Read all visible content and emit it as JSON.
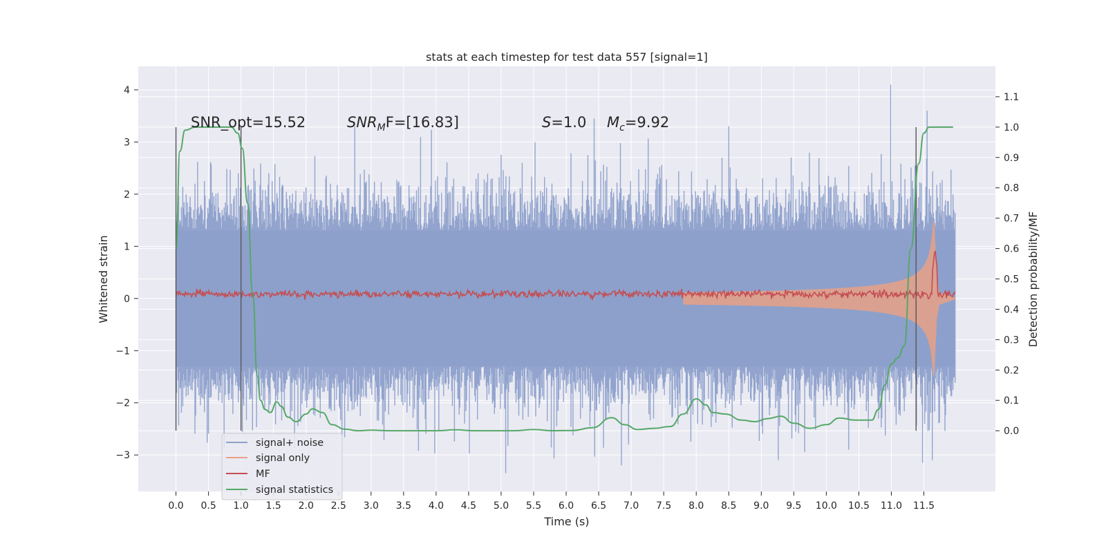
{
  "chart_data": {
    "type": "line",
    "title": "stats at each timestep for test data 557 [signal=1]",
    "xlabel": "Time (s)",
    "ylabel_left": "Whitened strain",
    "ylabel_right": "Detection probability/MF",
    "xlim": [
      -0.58,
      12.6
    ],
    "ylim_left": [
      -3.7,
      4.45
    ],
    "ylim_right": [
      -0.2,
      1.2
    ],
    "x_ticks": [
      "0.0",
      "0.5",
      "1.0",
      "1.5",
      "2.0",
      "2.5",
      "3.0",
      "3.5",
      "4.0",
      "4.5",
      "5.0",
      "5.5",
      "6.0",
      "6.5",
      "7.0",
      "7.5",
      "8.0",
      "8.5",
      "9.0",
      "9.5",
      "10.0",
      "10.5",
      "11.0",
      "11.5"
    ],
    "y_ticks_left": [
      "−3",
      "−2",
      "−1",
      "0",
      "1",
      "2",
      "3",
      "4"
    ],
    "y_ticks_right": [
      "0.0",
      "0.1",
      "0.2",
      "0.3",
      "0.4",
      "0.5",
      "0.6",
      "0.7",
      "0.8",
      "0.9",
      "1.0",
      "1.1"
    ],
    "grid": true,
    "legend_position": "lower-left",
    "annotations": {
      "snr_opt": "SNR_opt=15.52",
      "snr_mf_sym": "SNR",
      "snr_mf_sub": "M",
      "snr_mf_rest": "F=[16.83]",
      "s_sym": "S",
      "s_rest": "=1.0",
      "mc_sym": "M",
      "mc_sub": "c",
      "mc_rest": "=9.92"
    },
    "series": [
      {
        "name": "signal+ noise",
        "color": "#8da0cb",
        "axis": "left",
        "noise_envelope": 1.3,
        "peak_amplitude": 4.1,
        "x_range": [
          0.0,
          11.98
        ]
      },
      {
        "name": "signal only",
        "color": "#e8a086",
        "axis": "left",
        "chirp_start": 7.8,
        "merger_time": 11.68,
        "peak_amplitude": 1.5
      },
      {
        "name": "MF",
        "color": "#c44e52",
        "axis": "right",
        "baseline": 0.45,
        "peak_time": 11.67,
        "peak_value": 0.6
      },
      {
        "name": "signal statistics",
        "color": "#55a868",
        "axis": "right",
        "x": [
          0.0,
          0.06,
          0.14,
          0.3,
          0.6,
          0.85,
          0.95,
          1.02,
          1.1,
          1.18,
          1.25,
          1.3,
          1.37,
          1.45,
          1.55,
          1.62,
          1.72,
          1.85,
          2.0,
          2.1,
          2.25,
          2.4,
          2.6,
          2.8,
          3.0,
          3.3,
          3.6,
          4.0,
          4.3,
          4.6,
          4.9,
          5.2,
          5.5,
          5.8,
          6.1,
          6.4,
          6.7,
          6.9,
          7.1,
          7.35,
          7.6,
          7.8,
          8.0,
          8.15,
          8.25,
          8.45,
          8.7,
          8.9,
          9.1,
          9.3,
          9.5,
          9.75,
          10.0,
          10.2,
          10.45,
          10.7,
          10.8,
          10.9,
          11.0,
          11.1,
          11.2,
          11.3,
          11.42,
          11.5,
          11.58,
          11.7,
          11.95
        ],
        "y": [
          0.6,
          0.92,
          0.99,
          1.0,
          1.0,
          1.0,
          0.98,
          0.93,
          0.75,
          0.45,
          0.18,
          0.1,
          0.07,
          0.06,
          0.095,
          0.08,
          0.045,
          0.03,
          0.055,
          0.072,
          0.06,
          0.02,
          0.005,
          0.0,
          0.002,
          0.0,
          0.0,
          0.0,
          0.003,
          0.0,
          0.0,
          0.0,
          0.004,
          0.0,
          0.001,
          0.01,
          0.043,
          0.02,
          0.004,
          0.008,
          0.014,
          0.055,
          0.105,
          0.085,
          0.06,
          0.055,
          0.035,
          0.03,
          0.04,
          0.048,
          0.025,
          0.008,
          0.02,
          0.042,
          0.035,
          0.035,
          0.07,
          0.15,
          0.22,
          0.24,
          0.28,
          0.6,
          0.88,
          0.98,
          1.0,
          1.0,
          1.0
        ]
      }
    ],
    "vertical_markers": [
      0.0,
      1.0,
      11.38
    ]
  }
}
